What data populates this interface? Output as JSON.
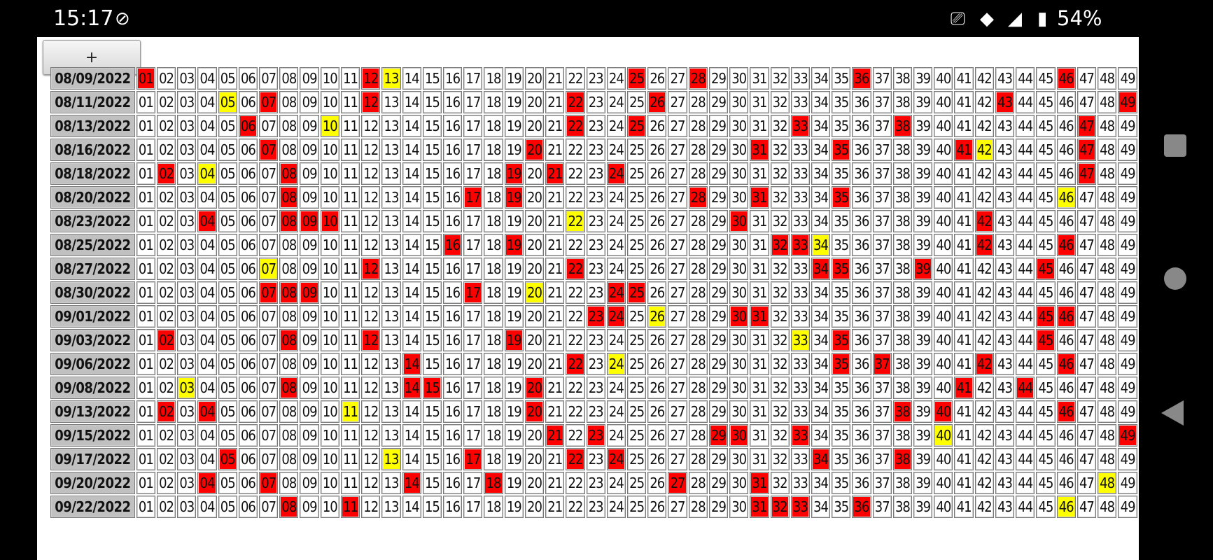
{
  "status_bar": {
    "time": "15:17",
    "battery": "54%",
    "icons": [
      "notification-app-icon",
      "nfc-icon",
      "wifi-icon",
      "signal-icon",
      "battery-icon"
    ]
  },
  "toolbar": {
    "add_label": "+"
  },
  "colors": {
    "hit": "#ff0000",
    "special": "#ffff00",
    "date_bg": "#c0c0c0"
  },
  "numbers": [
    "01",
    "02",
    "03",
    "04",
    "05",
    "06",
    "07",
    "08",
    "09",
    "10",
    "11",
    "12",
    "13",
    "14",
    "15",
    "16",
    "17",
    "18",
    "19",
    "20",
    "21",
    "22",
    "23",
    "24",
    "25",
    "26",
    "27",
    "28",
    "29",
    "30",
    "31",
    "32",
    "33",
    "34",
    "35",
    "36",
    "37",
    "38",
    "39",
    "40",
    "41",
    "42",
    "43",
    "44",
    "45",
    "46",
    "47",
    "48",
    "49"
  ],
  "rows": [
    {
      "date": "08/09/2022",
      "red": [
        "01",
        "12",
        "25",
        "28",
        "36",
        "46"
      ],
      "yellow": [
        "13"
      ]
    },
    {
      "date": "08/11/2022",
      "red": [
        "07",
        "12",
        "22",
        "26",
        "43",
        "49"
      ],
      "yellow": [
        "05"
      ]
    },
    {
      "date": "08/13/2022",
      "red": [
        "06",
        "22",
        "25",
        "33",
        "38",
        "47"
      ],
      "yellow": [
        "10"
      ]
    },
    {
      "date": "08/16/2022",
      "red": [
        "07",
        "20",
        "31",
        "35",
        "41",
        "47"
      ],
      "yellow": [
        "42"
      ]
    },
    {
      "date": "08/18/2022",
      "red": [
        "02",
        "08",
        "19",
        "21",
        "24",
        "47"
      ],
      "yellow": [
        "04"
      ]
    },
    {
      "date": "08/20/2022",
      "red": [
        "08",
        "17",
        "19",
        "28",
        "31",
        "35"
      ],
      "yellow": [
        "46"
      ]
    },
    {
      "date": "08/23/2022",
      "red": [
        "04",
        "08",
        "09",
        "10",
        "30",
        "42"
      ],
      "yellow": [
        "22"
      ]
    },
    {
      "date": "08/25/2022",
      "red": [
        "16",
        "19",
        "32",
        "33",
        "42",
        "46"
      ],
      "yellow": [
        "34"
      ]
    },
    {
      "date": "08/27/2022",
      "red": [
        "12",
        "22",
        "34",
        "35",
        "39",
        "45"
      ],
      "yellow": [
        "07"
      ]
    },
    {
      "date": "08/30/2022",
      "red": [
        "07",
        "08",
        "09",
        "17",
        "24",
        "25"
      ],
      "yellow": [
        "20"
      ]
    },
    {
      "date": "09/01/2022",
      "red": [
        "23",
        "24",
        "30",
        "31",
        "45",
        "46"
      ],
      "yellow": [
        "26"
      ]
    },
    {
      "date": "09/03/2022",
      "red": [
        "02",
        "08",
        "12",
        "19",
        "35",
        "45"
      ],
      "yellow": [
        "33"
      ]
    },
    {
      "date": "09/06/2022",
      "red": [
        "14",
        "22",
        "35",
        "37",
        "42",
        "46"
      ],
      "yellow": [
        "24"
      ]
    },
    {
      "date": "09/08/2022",
      "red": [
        "08",
        "14",
        "15",
        "20",
        "41",
        "44"
      ],
      "yellow": [
        "03"
      ]
    },
    {
      "date": "09/13/2022",
      "red": [
        "02",
        "04",
        "20",
        "38",
        "40",
        "46"
      ],
      "yellow": [
        "11"
      ]
    },
    {
      "date": "09/15/2022",
      "red": [
        "21",
        "23",
        "29",
        "30",
        "33",
        "49"
      ],
      "yellow": [
        "40"
      ]
    },
    {
      "date": "09/17/2022",
      "red": [
        "05",
        "17",
        "22",
        "24",
        "34",
        "38"
      ],
      "yellow": [
        "13"
      ]
    },
    {
      "date": "09/20/2022",
      "red": [
        "04",
        "07",
        "14",
        "18",
        "27",
        "31"
      ],
      "yellow": [
        "48"
      ]
    },
    {
      "date": "09/22/2022",
      "red": [
        "08",
        "11",
        "31",
        "32",
        "33",
        "36"
      ],
      "yellow": [
        "46"
      ]
    }
  ]
}
